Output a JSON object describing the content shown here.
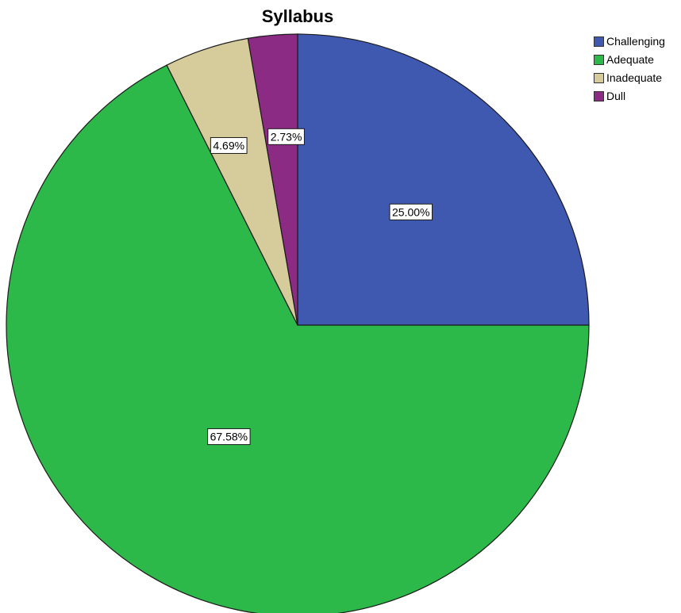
{
  "chart_data": {
    "type": "pie",
    "title": "Syllabus",
    "categories": [
      "Challenging",
      "Adequate",
      "Inadequate",
      "Dull"
    ],
    "values": [
      25.0,
      67.58,
      4.69,
      2.73
    ],
    "data_labels": [
      "25.00%",
      "67.58%",
      "4.69%",
      "2.73%"
    ],
    "colors": [
      "#3f58b0",
      "#2db84a",
      "#d5cb9b",
      "#8b2b83"
    ],
    "start_angle": "12 o'clock",
    "direction": "clockwise",
    "legend_placement": "top-right"
  }
}
